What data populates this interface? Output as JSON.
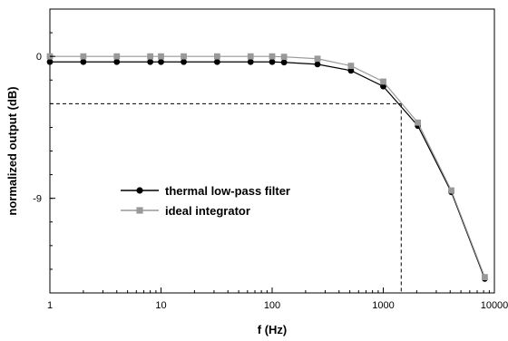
{
  "chart_data": {
    "type": "line",
    "title": "",
    "xlabel": "f (Hz)",
    "ylabel": "normalized output (dB)",
    "xscale": "log",
    "yscale": "linear",
    "xlim": [
      1,
      10000
    ],
    "ylim": [
      -15,
      3
    ],
    "xticks": [
      1,
      10,
      100,
      1000,
      10000
    ],
    "xtick_labels": [
      "1",
      "10",
      "100",
      "1000",
      "10000"
    ],
    "yticks": [
      0,
      -9
    ],
    "ytick_labels": [
      "0",
      "-9"
    ],
    "grid": false,
    "legend_position": "center-left",
    "series": [
      {
        "name": "thermal low-pass filter",
        "color": "#000000",
        "marker": "circle",
        "x": [
          1,
          2,
          4,
          8,
          10,
          16,
          32,
          64,
          100,
          128,
          256,
          512,
          1000,
          2048,
          4096,
          8192
        ],
        "y": [
          -0.35,
          -0.35,
          -0.35,
          -0.35,
          -0.35,
          -0.35,
          -0.35,
          -0.35,
          -0.35,
          -0.38,
          -0.5,
          -0.9,
          -1.9,
          -4.4,
          -8.6,
          -14.1
        ]
      },
      {
        "name": "ideal integrator",
        "color": "#999999",
        "marker": "square",
        "x": [
          1,
          2,
          4,
          8,
          10,
          16,
          32,
          64,
          100,
          128,
          256,
          512,
          1000,
          2048,
          4096,
          8192
        ],
        "y": [
          0,
          0,
          0,
          0,
          0,
          0,
          0,
          0,
          0,
          -0.03,
          -0.15,
          -0.6,
          -1.6,
          -4.2,
          -8.5,
          -14.0
        ]
      }
    ],
    "annotations": [
      {
        "type": "dashed-reference",
        "x": 1450,
        "y": -3
      }
    ]
  }
}
